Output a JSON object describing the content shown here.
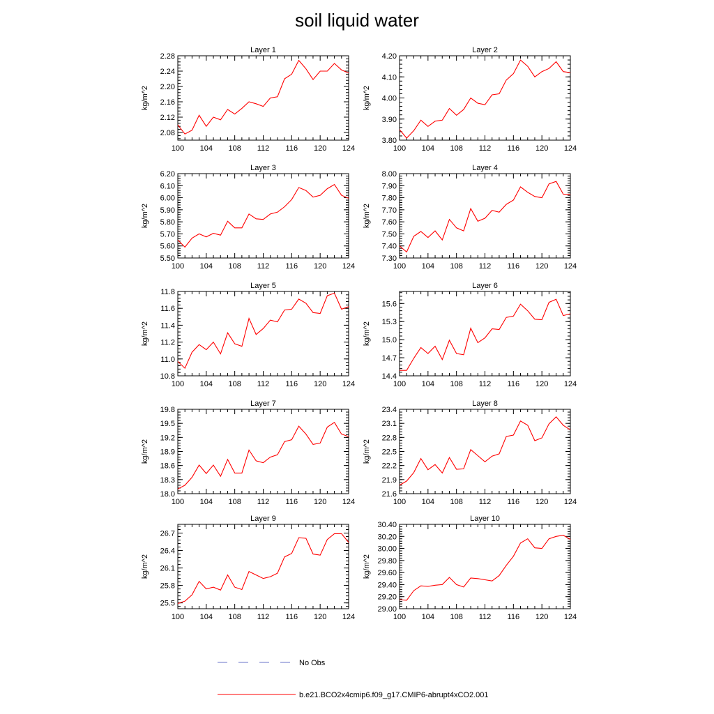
{
  "figure": {
    "title": "soil liquid water"
  },
  "legend": {
    "entries": [
      {
        "label": "No Obs",
        "style": "dashed",
        "color": "#6a73c9"
      },
      {
        "label": "b.e21.BCO2x4cmip6.f09_g17.CMIP6-abrupt4xCO2.001",
        "style": "solid",
        "color": "#ff0000"
      }
    ]
  },
  "chart_data": [
    {
      "type": "line",
      "title": "Layer 1",
      "ylabel": "kg/m^2",
      "xlim": [
        100,
        124
      ],
      "x_ticks": [
        100,
        104,
        108,
        112,
        116,
        120,
        124
      ],
      "ylim": [
        2.06,
        2.28
      ],
      "y_ticks": [
        "2.08",
        "2.12",
        "2.16",
        "2.20",
        "2.24",
        "2.28"
      ],
      "series": [
        {
          "name": "b.e21.BCO2x4cmip6.f09_g17.CMIP6-abrupt4xCO2.001",
          "color": "#ff0000",
          "x": [
            100,
            101,
            102,
            103,
            104,
            105,
            106,
            107,
            108,
            109,
            110,
            111,
            112,
            113,
            114,
            115,
            116,
            117,
            118,
            119,
            120,
            121,
            122,
            123,
            124
          ],
          "values": [
            2.1,
            2.076,
            2.086,
            2.125,
            2.096,
            2.12,
            2.113,
            2.14,
            2.128,
            2.143,
            2.16,
            2.155,
            2.148,
            2.17,
            2.173,
            2.22,
            2.232,
            2.268,
            2.246,
            2.218,
            2.24,
            2.24,
            2.26,
            2.243,
            2.235
          ]
        }
      ]
    },
    {
      "type": "line",
      "title": "Layer 2",
      "ylabel": "kg/m^2",
      "xlim": [
        100,
        124
      ],
      "x_ticks": [
        100,
        104,
        108,
        112,
        116,
        120,
        124
      ],
      "ylim": [
        3.8,
        4.2
      ],
      "y_ticks": [
        "3.80",
        "3.90",
        "4.00",
        "4.10",
        "4.20"
      ],
      "series": [
        {
          "name": "b.e21.BCO2x4cmip6.f09_g17.CMIP6-abrupt4xCO2.001",
          "color": "#ff0000",
          "x": [
            100,
            101,
            102,
            103,
            104,
            105,
            106,
            107,
            108,
            109,
            110,
            111,
            112,
            113,
            114,
            115,
            116,
            117,
            118,
            119,
            120,
            121,
            122,
            123,
            124
          ],
          "values": [
            3.85,
            3.81,
            3.845,
            3.895,
            3.865,
            3.89,
            3.895,
            3.95,
            3.918,
            3.945,
            4.0,
            3.975,
            3.968,
            4.015,
            4.02,
            4.085,
            4.115,
            4.18,
            4.15,
            4.1,
            4.125,
            4.14,
            4.172,
            4.125,
            4.12
          ]
        }
      ]
    },
    {
      "type": "line",
      "title": "Layer 3",
      "ylabel": "kg/m^2",
      "xlim": [
        100,
        124
      ],
      "x_ticks": [
        100,
        104,
        108,
        112,
        116,
        120,
        124
      ],
      "ylim": [
        5.5,
        6.2
      ],
      "y_ticks": [
        "5.50",
        "5.60",
        "5.70",
        "5.80",
        "5.90",
        "6.00",
        "6.10",
        "6.20"
      ],
      "series": [
        {
          "name": "b.e21.BCO2x4cmip6.f09_g17.CMIP6-abrupt4xCO2.001",
          "color": "#ff0000",
          "x": [
            100,
            101,
            102,
            103,
            104,
            105,
            106,
            107,
            108,
            109,
            110,
            111,
            112,
            113,
            114,
            115,
            116,
            117,
            118,
            119,
            120,
            121,
            122,
            123,
            124
          ],
          "values": [
            5.65,
            5.59,
            5.665,
            5.7,
            5.675,
            5.705,
            5.69,
            5.805,
            5.75,
            5.75,
            5.865,
            5.825,
            5.82,
            5.865,
            5.88,
            5.925,
            5.985,
            6.085,
            6.06,
            6.005,
            6.02,
            6.075,
            6.11,
            6.02,
            5.995
          ]
        }
      ]
    },
    {
      "type": "line",
      "title": "Layer 4",
      "ylabel": "kg/m^2",
      "xlim": [
        100,
        124
      ],
      "x_ticks": [
        100,
        104,
        108,
        112,
        116,
        120,
        124
      ],
      "ylim": [
        7.3,
        8.0
      ],
      "y_ticks": [
        "7.30",
        "7.40",
        "7.50",
        "7.60",
        "7.70",
        "7.80",
        "7.90",
        "8.00"
      ],
      "series": [
        {
          "name": "b.e21.BCO2x4cmip6.f09_g17.CMIP6-abrupt4xCO2.001",
          "color": "#ff0000",
          "x": [
            100,
            101,
            102,
            103,
            104,
            105,
            106,
            107,
            108,
            109,
            110,
            111,
            112,
            113,
            114,
            115,
            116,
            117,
            118,
            119,
            120,
            121,
            122,
            123,
            124
          ],
          "values": [
            7.4,
            7.35,
            7.48,
            7.52,
            7.47,
            7.525,
            7.45,
            7.62,
            7.55,
            7.525,
            7.71,
            7.605,
            7.63,
            7.695,
            7.68,
            7.745,
            7.78,
            7.89,
            7.845,
            7.81,
            7.8,
            7.915,
            7.935,
            7.83,
            7.825
          ]
        }
      ]
    },
    {
      "type": "line",
      "title": "Layer 5",
      "ylabel": "kg/m^2",
      "xlim": [
        100,
        124
      ],
      "x_ticks": [
        100,
        104,
        108,
        112,
        116,
        120,
        124
      ],
      "ylim": [
        10.8,
        11.8
      ],
      "y_ticks": [
        "10.8",
        "11.0",
        "11.2",
        "11.4",
        "11.6",
        "11.8"
      ],
      "series": [
        {
          "name": "b.e21.BCO2x4cmip6.f09_g17.CMIP6-abrupt4xCO2.001",
          "color": "#ff0000",
          "x": [
            100,
            101,
            102,
            103,
            104,
            105,
            106,
            107,
            108,
            109,
            110,
            111,
            112,
            113,
            114,
            115,
            116,
            117,
            118,
            119,
            120,
            121,
            122,
            123,
            124
          ],
          "values": [
            10.97,
            10.89,
            11.08,
            11.17,
            11.11,
            11.2,
            11.06,
            11.31,
            11.18,
            11.15,
            11.48,
            11.29,
            11.36,
            11.46,
            11.44,
            11.58,
            11.59,
            11.71,
            11.66,
            11.55,
            11.54,
            11.75,
            11.78,
            11.59,
            11.62
          ]
        }
      ]
    },
    {
      "type": "line",
      "title": "Layer 6",
      "ylabel": "kg/m^2",
      "xlim": [
        100,
        124
      ],
      "x_ticks": [
        100,
        104,
        108,
        112,
        116,
        120,
        124
      ],
      "ylim": [
        14.4,
        15.8
      ],
      "y_ticks": [
        "14.4",
        "14.7",
        "15.0",
        "15.3",
        "15.6"
      ],
      "series": [
        {
          "name": "b.e21.BCO2x4cmip6.f09_g17.CMIP6-abrupt4xCO2.001",
          "color": "#ff0000",
          "x": [
            100,
            101,
            102,
            103,
            104,
            105,
            106,
            107,
            108,
            109,
            110,
            111,
            112,
            113,
            114,
            115,
            116,
            117,
            118,
            119,
            120,
            121,
            122,
            123,
            124
          ],
          "values": [
            14.49,
            14.49,
            14.69,
            14.87,
            14.77,
            14.89,
            14.67,
            14.99,
            14.77,
            14.75,
            15.19,
            14.95,
            15.03,
            15.18,
            15.17,
            15.37,
            15.39,
            15.59,
            15.48,
            15.34,
            15.33,
            15.62,
            15.67,
            15.4,
            15.43
          ]
        }
      ]
    },
    {
      "type": "line",
      "title": "Layer 7",
      "ylabel": "kg/m^2",
      "xlim": [
        100,
        124
      ],
      "x_ticks": [
        100,
        104,
        108,
        112,
        116,
        120,
        124
      ],
      "ylim": [
        18.0,
        19.8
      ],
      "y_ticks": [
        "18.0",
        "18.3",
        "18.6",
        "18.9",
        "19.2",
        "19.5",
        "19.8"
      ],
      "series": [
        {
          "name": "b.e21.BCO2x4cmip6.f09_g17.CMIP6-abrupt4xCO2.001",
          "color": "#ff0000",
          "x": [
            100,
            101,
            102,
            103,
            104,
            105,
            106,
            107,
            108,
            109,
            110,
            111,
            112,
            113,
            114,
            115,
            116,
            117,
            118,
            119,
            120,
            121,
            122,
            123,
            124
          ],
          "values": [
            18.1,
            18.18,
            18.35,
            18.61,
            18.43,
            18.61,
            18.37,
            18.73,
            18.44,
            18.44,
            18.93,
            18.7,
            18.66,
            18.78,
            18.83,
            19.11,
            19.15,
            19.44,
            19.27,
            19.05,
            19.08,
            19.42,
            19.52,
            19.27,
            19.22
          ]
        }
      ]
    },
    {
      "type": "line",
      "title": "Layer 8",
      "ylabel": "kg/m^2",
      "xlim": [
        100,
        124
      ],
      "x_ticks": [
        100,
        104,
        108,
        112,
        116,
        120,
        124
      ],
      "ylim": [
        21.6,
        23.4
      ],
      "y_ticks": [
        "21.6",
        "21.9",
        "22.2",
        "22.5",
        "22.8",
        "23.1",
        "23.4"
      ],
      "series": [
        {
          "name": "b.e21.BCO2x4cmip6.f09_g17.CMIP6-abrupt4xCO2.001",
          "color": "#ff0000",
          "x": [
            100,
            101,
            102,
            103,
            104,
            105,
            106,
            107,
            108,
            109,
            110,
            111,
            112,
            113,
            114,
            115,
            116,
            117,
            118,
            119,
            120,
            121,
            122,
            123,
            124
          ],
          "values": [
            21.78,
            21.87,
            22.05,
            22.35,
            22.11,
            22.22,
            22.04,
            22.37,
            22.12,
            22.13,
            22.54,
            22.41,
            22.28,
            22.4,
            22.45,
            22.82,
            22.85,
            23.15,
            23.06,
            22.73,
            22.79,
            23.09,
            23.24,
            23.06,
            22.96
          ]
        }
      ]
    },
    {
      "type": "line",
      "title": "Layer 9",
      "ylabel": "kg/m^2",
      "xlim": [
        100,
        124
      ],
      "x_ticks": [
        100,
        104,
        108,
        112,
        116,
        120,
        124
      ],
      "ylim": [
        25.4,
        26.85
      ],
      "y_ticks": [
        "25.5",
        "25.8",
        "26.1",
        "26.4",
        "26.7"
      ],
      "series": [
        {
          "name": "b.e21.BCO2x4cmip6.f09_g17.CMIP6-abrupt4xCO2.001",
          "color": "#ff0000",
          "x": [
            100,
            101,
            102,
            103,
            104,
            105,
            106,
            107,
            108,
            109,
            110,
            111,
            112,
            113,
            114,
            115,
            116,
            117,
            118,
            119,
            120,
            121,
            122,
            123,
            124
          ],
          "values": [
            25.49,
            25.53,
            25.64,
            25.87,
            25.74,
            25.77,
            25.72,
            25.98,
            25.77,
            25.73,
            26.04,
            25.98,
            25.92,
            25.95,
            26.01,
            26.29,
            26.35,
            26.62,
            26.61,
            26.34,
            26.32,
            26.59,
            26.69,
            26.69,
            26.54
          ]
        }
      ]
    },
    {
      "type": "line",
      "title": "Layer 10",
      "ylabel": "kg/m^2",
      "xlim": [
        100,
        124
      ],
      "x_ticks": [
        100,
        104,
        108,
        112,
        116,
        120,
        124
      ],
      "ylim": [
        29.0,
        30.4
      ],
      "y_ticks": [
        "29.00",
        "29.20",
        "29.40",
        "29.60",
        "29.80",
        "30.00",
        "30.20",
        "30.40"
      ],
      "series": [
        {
          "name": "b.e21.BCO2x4cmip6.f09_g17.CMIP6-abrupt4xCO2.001",
          "color": "#ff0000",
          "x": [
            100,
            101,
            102,
            103,
            104,
            105,
            106,
            107,
            108,
            109,
            110,
            111,
            112,
            113,
            114,
            115,
            116,
            117,
            118,
            119,
            120,
            121,
            122,
            123,
            124
          ],
          "values": [
            29.15,
            29.14,
            29.3,
            29.38,
            29.37,
            29.39,
            29.4,
            29.52,
            29.4,
            29.36,
            29.51,
            29.5,
            29.48,
            29.46,
            29.55,
            29.72,
            29.87,
            30.09,
            30.16,
            30.01,
            30.0,
            30.16,
            30.2,
            30.22,
            30.15
          ]
        }
      ]
    }
  ]
}
